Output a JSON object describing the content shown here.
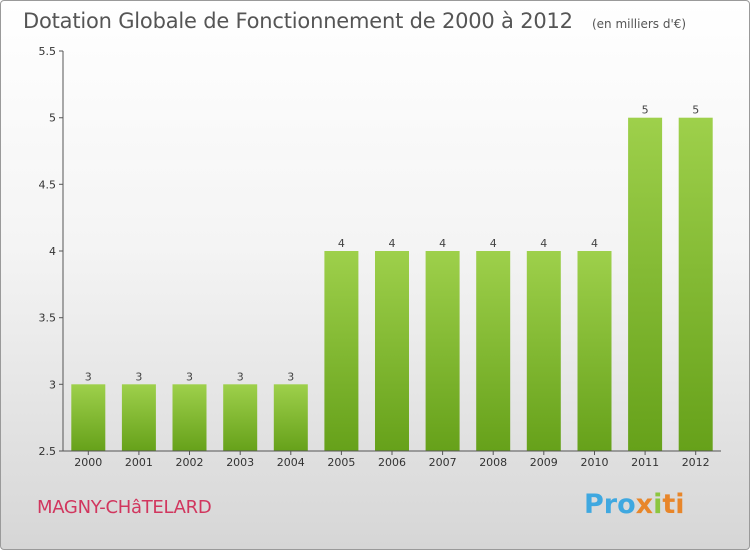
{
  "header": {
    "title": "Dotation Globale de Fonctionnement de 2000 à 2012",
    "unit": "(en milliers d'€)"
  },
  "footer": {
    "commune": "MAGNY-CHâTELARD",
    "brand": "Proxiti"
  },
  "colors": {
    "bar_light": "#9ed04b",
    "bar_dark": "#66a11a",
    "commune_text": "#d1365e",
    "axis_text": "#333333"
  },
  "chart_data": {
    "type": "bar",
    "title": "Dotation Globale de Fonctionnement de 2000 à 2012",
    "subtitle": "(en milliers d'€)",
    "xlabel": "",
    "ylabel": "",
    "categories": [
      "2000",
      "2001",
      "2002",
      "2003",
      "2004",
      "2005",
      "2006",
      "2007",
      "2008",
      "2009",
      "2010",
      "2011",
      "2012"
    ],
    "values": [
      3,
      3,
      3,
      3,
      3,
      4,
      4,
      4,
      4,
      4,
      4,
      5,
      5
    ],
    "data_labels": [
      "3",
      "3",
      "3",
      "3",
      "3",
      "4",
      "4",
      "4",
      "4",
      "4",
      "4",
      "5",
      "5"
    ],
    "ylim": [
      2.5,
      5.5
    ],
    "yticks": [
      2.5,
      3,
      3.5,
      4,
      4.5,
      5,
      5.5
    ],
    "ytick_labels": [
      "2.5",
      "3",
      "3.5",
      "4",
      "4.5",
      "5",
      "5.5"
    ],
    "grid": false,
    "legend": "none"
  }
}
